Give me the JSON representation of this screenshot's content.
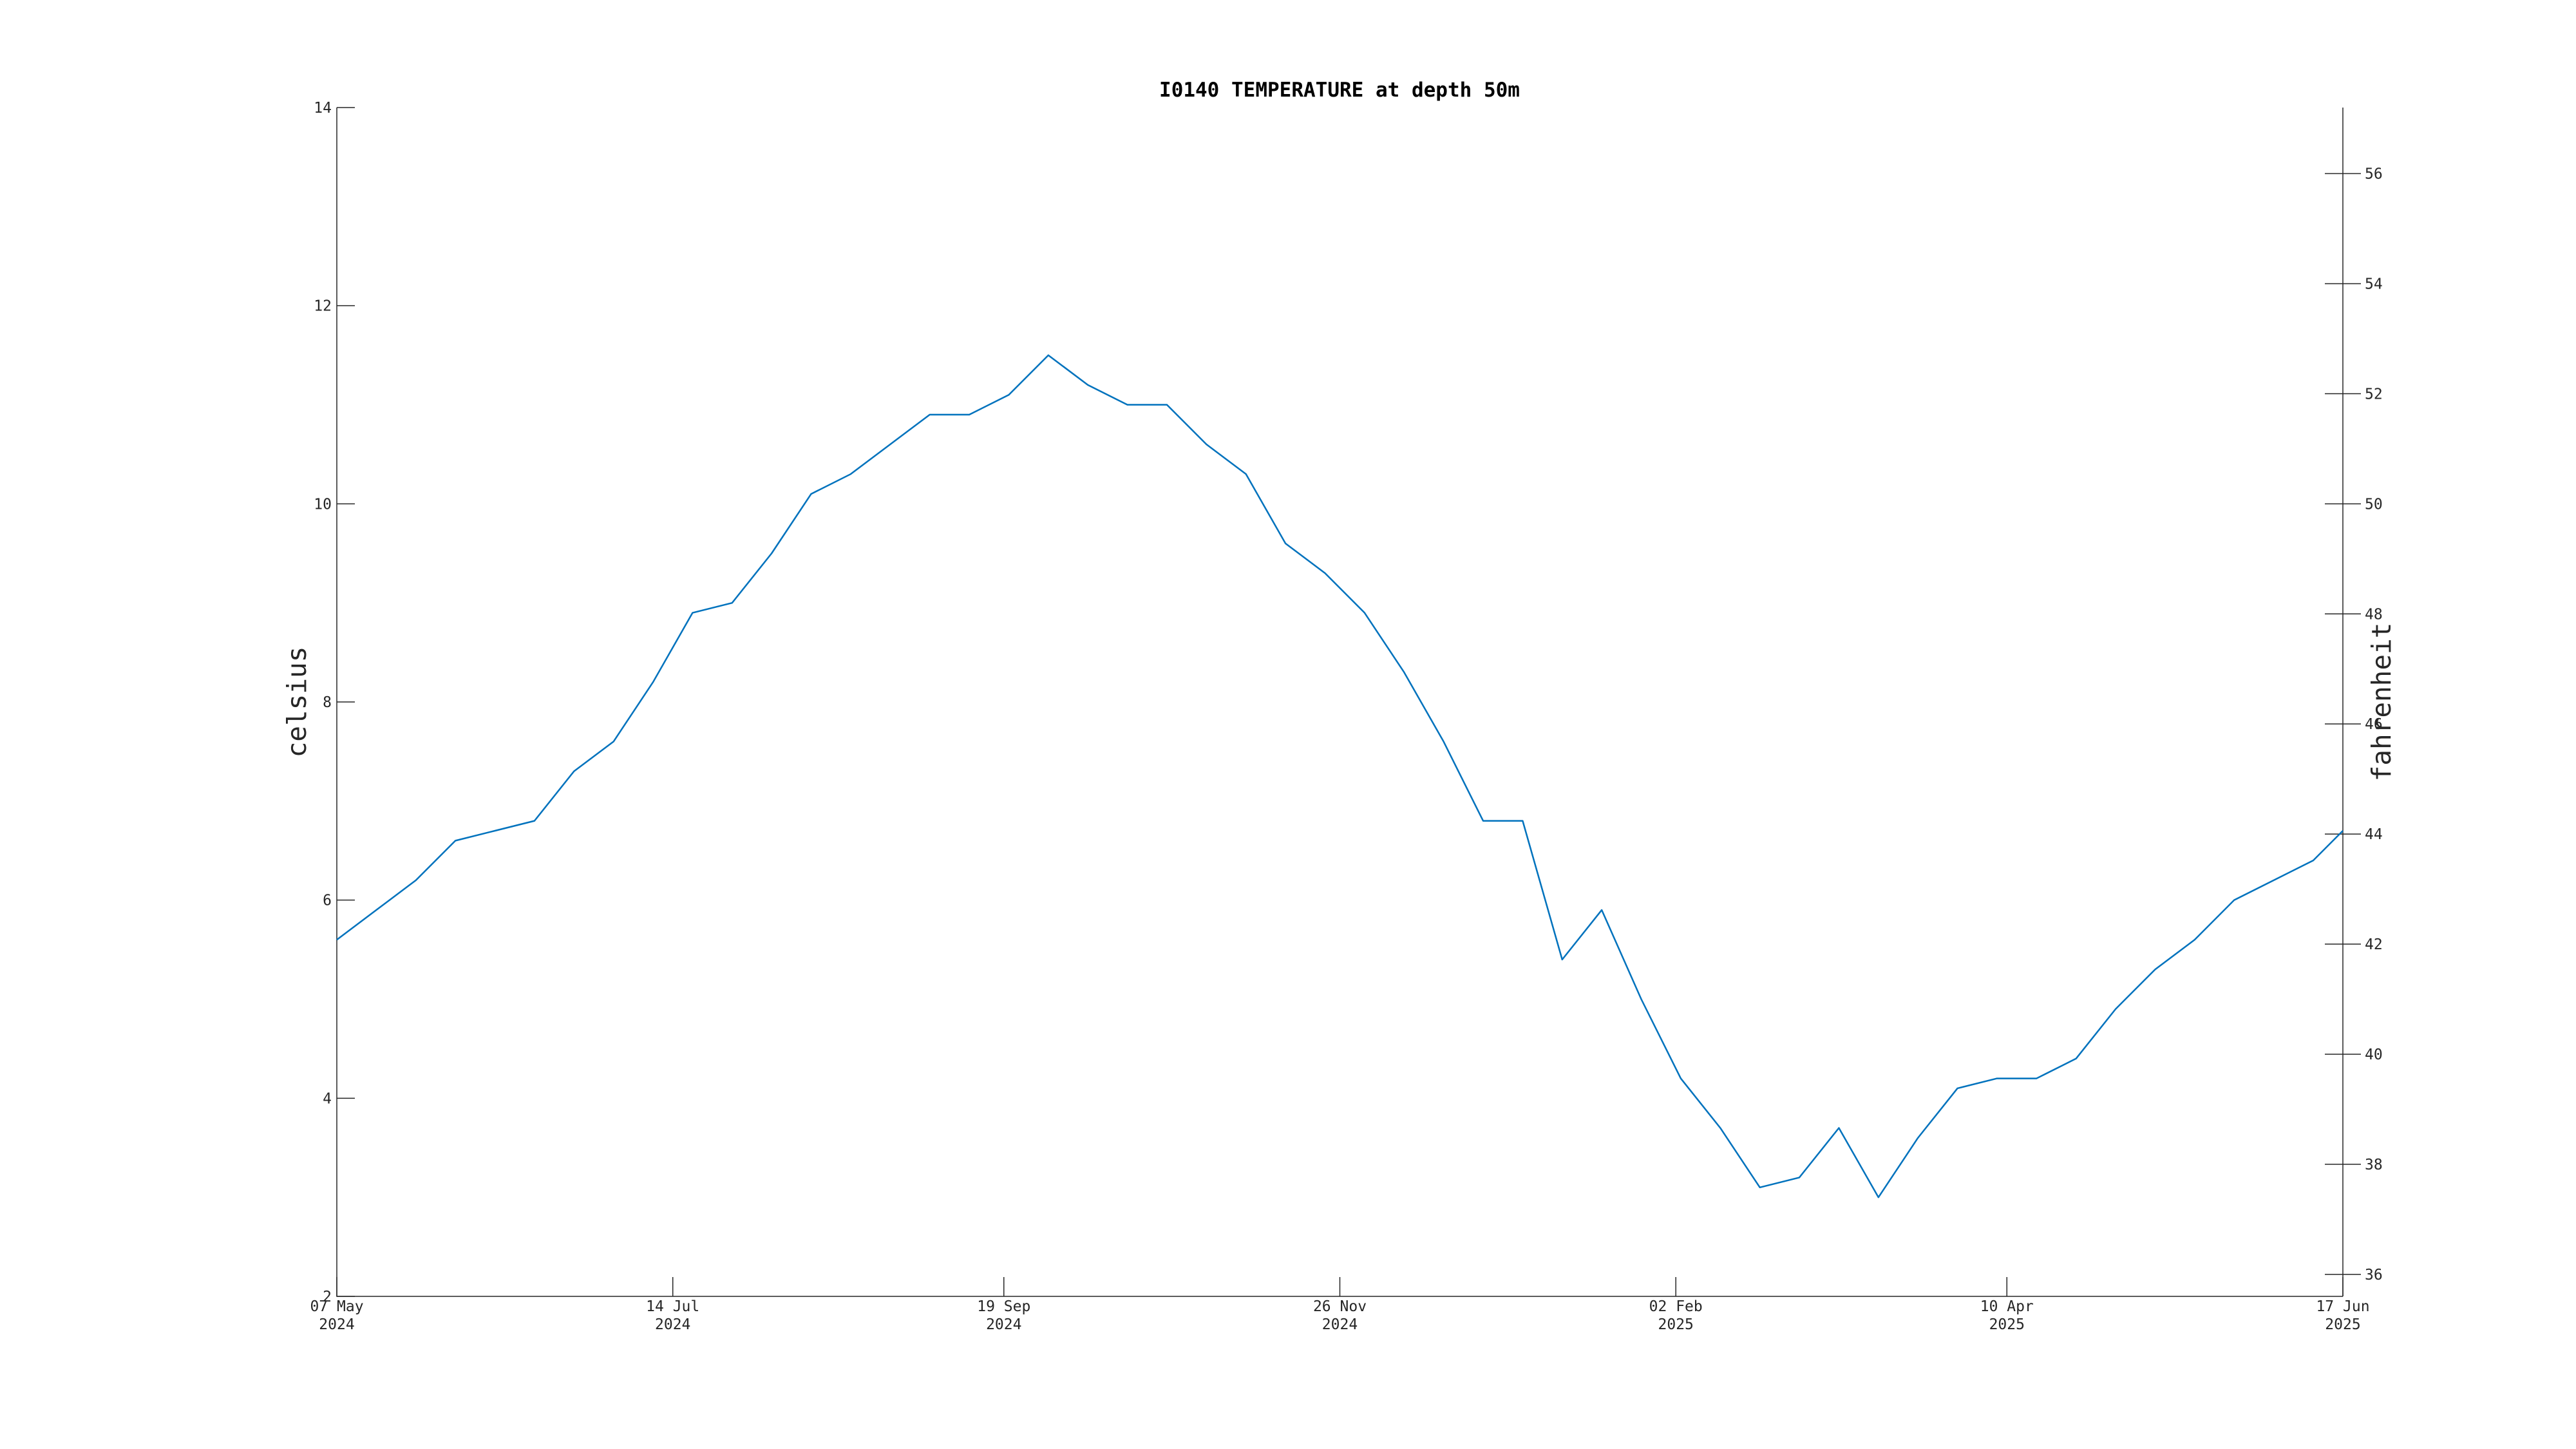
{
  "chart_data": {
    "type": "line",
    "title": "I0140 TEMPERATURE at depth 50m",
    "ylabel": "celsius",
    "y2label": "fahrenheit",
    "x": [
      "2024-05-07",
      "2024-05-15",
      "2024-05-23",
      "2024-05-31",
      "2024-06-08",
      "2024-06-16",
      "2024-06-24",
      "2024-07-02",
      "2024-07-10",
      "2024-07-18",
      "2024-07-26",
      "2024-08-03",
      "2024-08-11",
      "2024-08-19",
      "2024-08-27",
      "2024-09-04",
      "2024-09-12",
      "2024-09-20",
      "2024-09-28",
      "2024-10-06",
      "2024-10-14",
      "2024-10-22",
      "2024-10-30",
      "2024-11-07",
      "2024-11-15",
      "2024-11-23",
      "2024-12-01",
      "2024-12-09",
      "2024-12-17",
      "2024-12-25",
      "2025-01-02",
      "2025-01-10",
      "2025-01-18",
      "2025-01-26",
      "2025-02-03",
      "2025-02-11",
      "2025-02-19",
      "2025-02-27",
      "2025-03-07",
      "2025-03-15",
      "2025-03-23",
      "2025-03-31",
      "2025-04-08",
      "2025-04-16",
      "2025-04-24",
      "2025-05-02",
      "2025-05-10",
      "2025-05-18",
      "2025-05-26",
      "2025-06-03",
      "2025-06-11",
      "2025-06-17"
    ],
    "series": [
      {
        "name": "temperature",
        "color": "#0072bd",
        "values": [
          5.6,
          5.9,
          6.2,
          6.6,
          6.7,
          6.8,
          7.3,
          7.6,
          8.2,
          8.9,
          9.0,
          9.5,
          10.1,
          10.3,
          10.6,
          10.9,
          10.9,
          11.1,
          11.5,
          11.2,
          11.0,
          11.0,
          10.6,
          10.3,
          9.6,
          9.3,
          8.9,
          8.3,
          7.6,
          6.8,
          6.8,
          5.4,
          5.9,
          5.0,
          4.2,
          3.7,
          3.1,
          3.2,
          3.7,
          3.0,
          3.6,
          4.1,
          4.2,
          4.2,
          4.4,
          4.9,
          5.3,
          5.6,
          6.0,
          6.2,
          6.4,
          6.7
        ]
      }
    ],
    "xlim": [
      "2024-05-07",
      "2025-06-17"
    ],
    "xticks": [
      {
        "value": "2024-05-07",
        "label": [
          "07 May",
          "2024"
        ]
      },
      {
        "value": "2024-07-14",
        "label": [
          "14 Jul",
          "2024"
        ]
      },
      {
        "value": "2024-09-19",
        "label": [
          "19 Sep",
          "2024"
        ]
      },
      {
        "value": "2024-11-26",
        "label": [
          "26 Nov",
          "2024"
        ]
      },
      {
        "value": "2025-02-02",
        "label": [
          "02 Feb",
          "2025"
        ]
      },
      {
        "value": "2025-04-10",
        "label": [
          "10 Apr",
          "2025"
        ]
      },
      {
        "value": "2025-06-17",
        "label": [
          "17 Jun",
          "2025"
        ]
      }
    ],
    "ylim": [
      2,
      14
    ],
    "yticks": [
      2,
      4,
      6,
      8,
      10,
      12,
      14
    ],
    "y2lim": [
      35.6,
      57.2
    ],
    "y2ticks": [
      36,
      38,
      40,
      42,
      44,
      46,
      48,
      50,
      52,
      54,
      56
    ],
    "grid": false
  }
}
